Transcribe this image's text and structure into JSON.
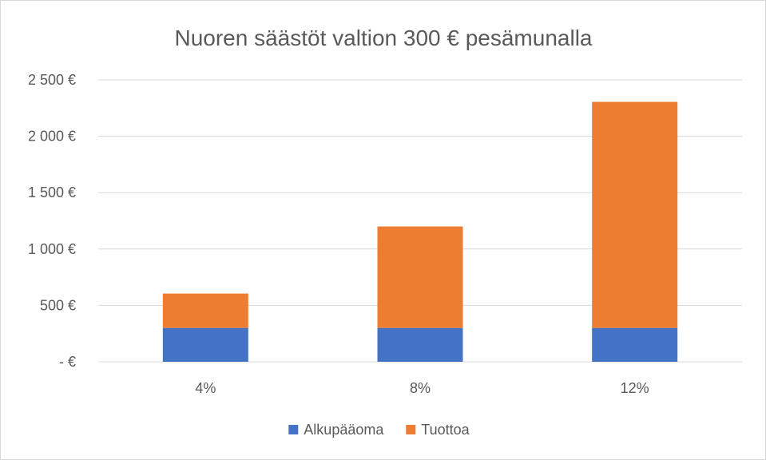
{
  "chart_data": {
    "type": "bar",
    "stacked": true,
    "title": "Nuoren säästöt valtion 300 € pesämunalla",
    "xlabel": "",
    "ylabel": "",
    "categories": [
      "4%",
      "8%",
      "12%"
    ],
    "series": [
      {
        "name": "Alkupääoma",
        "values": [
          300,
          300,
          300
        ],
        "color": "#4472C4"
      },
      {
        "name": "Tuottoa",
        "values": [
          305,
          900,
          2005
        ],
        "color": "#ED7D31"
      }
    ],
    "ylim": [
      0,
      2500
    ],
    "yticks": [
      {
        "value": 0,
        "label": "-   €"
      },
      {
        "value": 500,
        "label": "500 €"
      },
      {
        "value": 1000,
        "label": "1 000 €"
      },
      {
        "value": 1500,
        "label": "1 500 €"
      },
      {
        "value": 2000,
        "label": "2 000 €"
      },
      {
        "value": 2500,
        "label": "2 500 €"
      }
    ],
    "grid": true,
    "legend_position": "bottom"
  }
}
